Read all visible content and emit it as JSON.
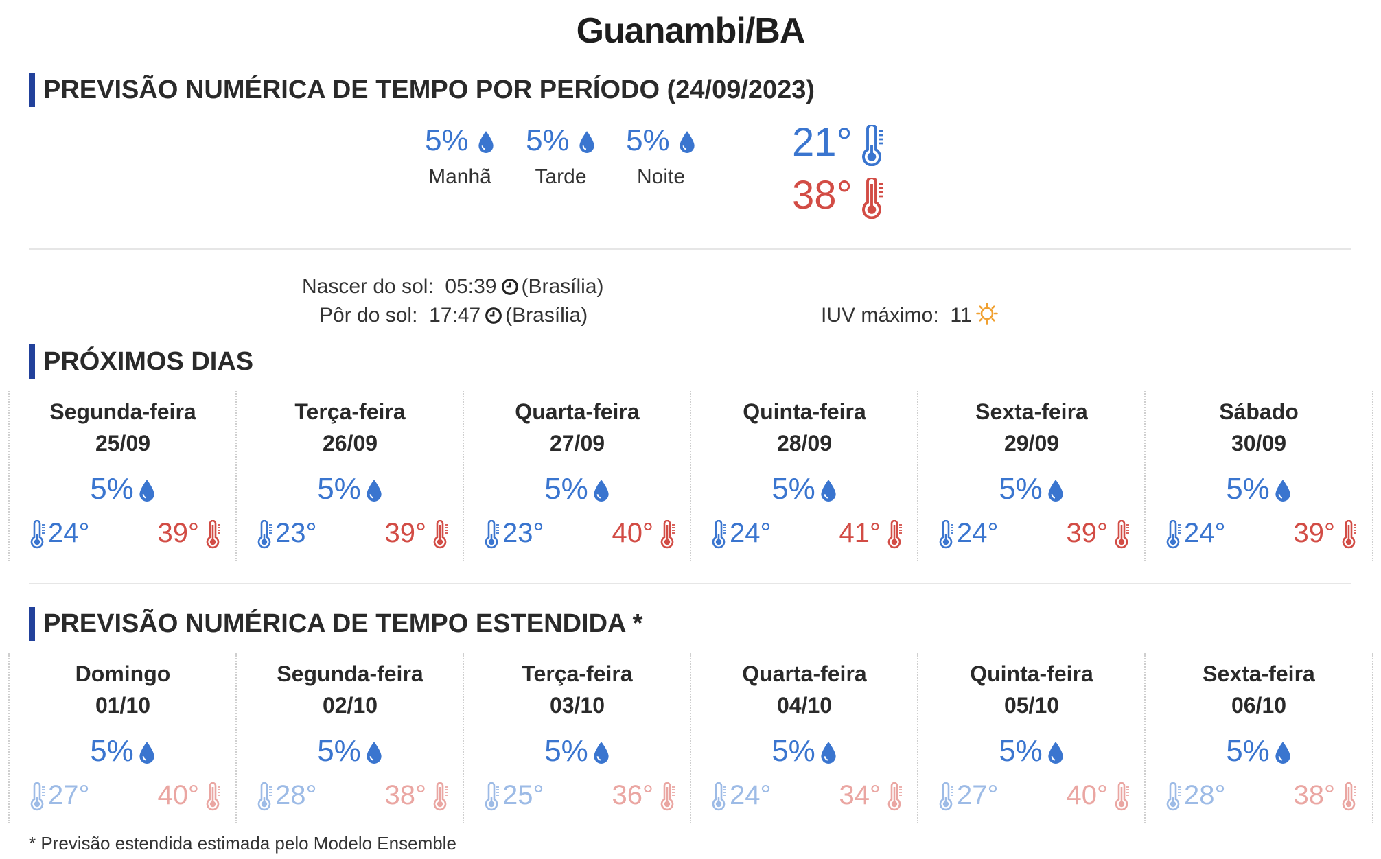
{
  "title": "Guanambi/BA",
  "period_forecast": {
    "heading": "PREVISÃO NUMÉRICA DE TEMPO POR PERÍODO (24/09/2023)",
    "periods": [
      {
        "label": "Manhã",
        "rain": "5%"
      },
      {
        "label": "Tarde",
        "rain": "5%"
      },
      {
        "label": "Noite",
        "rain": "5%"
      }
    ],
    "temp_min": "21°",
    "temp_max": "38°"
  },
  "sun": {
    "sunrise_label": "Nascer do sol:",
    "sunrise_time": "05:39",
    "sunset_label": "Pôr do sol:",
    "sunset_time": "17:47",
    "timezone": "(Brasília)",
    "uv_label": "IUV máximo:",
    "uv_value": "11"
  },
  "next_days": {
    "heading": "PRÓXIMOS DIAS",
    "days": [
      {
        "name": "Segunda-feira",
        "date": "25/09",
        "rain": "5%",
        "min": "24°",
        "max": "39°"
      },
      {
        "name": "Terça-feira",
        "date": "26/09",
        "rain": "5%",
        "min": "23°",
        "max": "39°"
      },
      {
        "name": "Quarta-feira",
        "date": "27/09",
        "rain": "5%",
        "min": "23°",
        "max": "40°"
      },
      {
        "name": "Quinta-feira",
        "date": "28/09",
        "rain": "5%",
        "min": "24°",
        "max": "41°"
      },
      {
        "name": "Sexta-feira",
        "date": "29/09",
        "rain": "5%",
        "min": "24°",
        "max": "39°"
      },
      {
        "name": "Sábado",
        "date": "30/09",
        "rain": "5%",
        "min": "24°",
        "max": "39°"
      }
    ]
  },
  "extended": {
    "heading": "PREVISÃO NUMÉRICA DE TEMPO ESTENDIDA *",
    "days": [
      {
        "name": "Domingo",
        "date": "01/10",
        "rain": "5%",
        "min": "27°",
        "max": "40°"
      },
      {
        "name": "Segunda-feira",
        "date": "02/10",
        "rain": "5%",
        "min": "28°",
        "max": "38°"
      },
      {
        "name": "Terça-feira",
        "date": "03/10",
        "rain": "5%",
        "min": "25°",
        "max": "36°"
      },
      {
        "name": "Quarta-feira",
        "date": "04/10",
        "rain": "5%",
        "min": "24°",
        "max": "34°"
      },
      {
        "name": "Quinta-feira",
        "date": "05/10",
        "rain": "5%",
        "min": "27°",
        "max": "40°"
      },
      {
        "name": "Sexta-feira",
        "date": "06/10",
        "rain": "5%",
        "min": "28°",
        "max": "38°"
      }
    ]
  },
  "footnote": "* Previsão estendida estimada pelo Modelo Ensemble",
  "colors": {
    "accent": "#22419b",
    "cold": "#3a75cf",
    "hot": "#d24c45",
    "cold_faded": "#9dbbe6",
    "hot_faded": "#eaa6a2",
    "sun": "#f0a030"
  },
  "icons": {
    "rain": "raindrop-icon",
    "cold": "thermometer-cold-icon",
    "hot": "thermometer-hot-icon",
    "clock": "clock-icon",
    "uv": "sun-icon"
  }
}
